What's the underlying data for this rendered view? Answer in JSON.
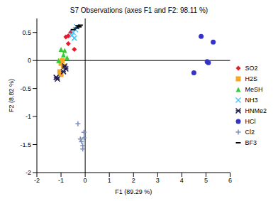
{
  "chart_data": {
    "type": "scatter",
    "title": "S7 Observations (axes F1 and F2: 98.11 %)",
    "x_label": "F1 (89.29 %)",
    "y_label": "F2 (8.82 %)",
    "xlim": [
      -2,
      6
    ],
    "xticks": [
      -2,
      -1,
      0,
      1,
      2,
      3,
      4,
      5,
      6
    ],
    "ylim": [
      -2,
      0.75
    ],
    "yticks": [
      -2,
      -1.5,
      -1,
      -0.5,
      0,
      0.5
    ],
    "grid": false,
    "legend": "right",
    "series": [
      {
        "name": "SO2",
        "color": "#e8192c",
        "marker": "diamond",
        "x": [
          -0.8,
          -0.7,
          -0.6,
          -0.45,
          -0.7
        ],
        "values": [
          0.42,
          0.44,
          0.5,
          0.2,
          0.3
        ]
      },
      {
        "name": "H2S",
        "color": "#f5a623",
        "marker": "square",
        "x": [
          -1.0,
          -0.9,
          -1.05,
          -1.0,
          -0.95
        ],
        "values": [
          -0.05,
          -0.1,
          -0.2,
          -0.25,
          0.0
        ]
      },
      {
        "name": "MeSH",
        "color": "#33cc33",
        "marker": "triangle",
        "x": [
          -1.0,
          -0.85,
          -1.1,
          -0.75,
          -0.9
        ],
        "values": [
          0.2,
          0.18,
          0.0,
          0.05,
          0.1
        ]
      },
      {
        "name": "NH3",
        "color": "#4fc3f7",
        "marker": "x",
        "x": [
          -0.55,
          -0.4,
          -0.35,
          -0.5,
          -0.45
        ],
        "values": [
          0.45,
          0.55,
          0.6,
          0.5,
          0.4
        ]
      },
      {
        "name": "HNMe2",
        "color": "#1a1a4e",
        "marker": "star",
        "x": [
          -1.2,
          -1.15,
          -0.85,
          -0.8,
          -0.9
        ],
        "values": [
          -0.3,
          -0.33,
          -0.1,
          -0.15,
          -0.2
        ]
      },
      {
        "name": "HCl",
        "color": "#3333cc",
        "marker": "circle",
        "x": [
          4.8,
          5.3,
          5.05,
          5.1,
          4.5
        ],
        "values": [
          0.43,
          0.33,
          -0.02,
          -0.04,
          -0.22
        ]
      },
      {
        "name": "Cl2",
        "color": "#7a8fc0",
        "marker": "plus",
        "x": [
          -0.3,
          -0.05,
          -0.05,
          -0.2,
          -0.15,
          -0.1,
          -0.1
        ],
        "values": [
          -1.13,
          -1.28,
          -1.38,
          -1.4,
          -1.45,
          -1.52,
          -1.58
        ]
      },
      {
        "name": "BF3",
        "color": "#000000",
        "marker": "dash",
        "x": [
          -0.3,
          -0.25,
          -0.35,
          -0.5,
          -0.2
        ],
        "values": [
          0.62,
          0.6,
          0.58,
          0.55,
          0.63
        ]
      }
    ]
  }
}
